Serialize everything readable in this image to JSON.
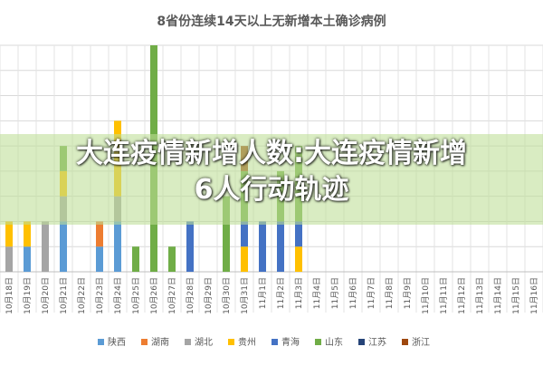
{
  "overlay": {
    "headline_line1": "大连疫情新增人数:大连疫情新增",
    "headline_line2": "6人行动轨迹"
  },
  "chart_data": {
    "type": "bar",
    "stacked": true,
    "title": "8省份连续14天以上无新增本土确诊病例",
    "categories": [
      "10月18日",
      "10月19日",
      "10月20日",
      "10月21日",
      "10月22日",
      "10月23日",
      "10月24日",
      "10月25日",
      "10月26日",
      "10月27日",
      "10月28日",
      "10月29日",
      "10月30日",
      "10月31日",
      "11月1日",
      "11月2日",
      "11月3日",
      "11月4日",
      "11月5日",
      "11月6日",
      "11月7日",
      "11月8日",
      "11月9日",
      "11月10日",
      "11月11日",
      "11月12日",
      "11月13日",
      "11月14日",
      "11月15日",
      "11月16日"
    ],
    "ylim": [
      0,
      9
    ],
    "grid": true,
    "legend_position": "bottom",
    "series": [
      {
        "name": "陕西",
        "color": "#5B9BD5",
        "values": [
          0,
          1,
          0,
          2,
          0,
          1,
          2,
          0,
          0,
          0,
          0,
          0,
          0,
          0,
          0,
          0,
          0,
          0,
          0,
          0,
          0,
          0,
          0,
          0,
          0,
          0,
          0,
          0,
          0,
          0
        ]
      },
      {
        "name": "湖南",
        "color": "#ED7D31",
        "values": [
          0,
          0,
          0,
          0,
          0,
          1,
          0,
          0,
          0,
          0,
          0,
          0,
          0,
          0,
          0,
          0,
          0,
          0,
          0,
          0,
          0,
          0,
          0,
          0,
          0,
          0,
          0,
          0,
          0,
          0
        ]
      },
      {
        "name": "湖北",
        "color": "#A5A5A5",
        "values": [
          1,
          0,
          2,
          1,
          0,
          0,
          1,
          0,
          0,
          0,
          0,
          0,
          0,
          0,
          0,
          0,
          0,
          0,
          0,
          0,
          0,
          0,
          0,
          0,
          0,
          0,
          0,
          0,
          0,
          0
        ]
      },
      {
        "name": "贵州",
        "color": "#FFC000",
        "values": [
          1,
          1,
          0,
          1,
          0,
          0,
          3,
          0,
          0,
          0,
          0,
          0,
          0,
          1,
          0,
          0,
          1,
          0,
          0,
          0,
          0,
          0,
          0,
          0,
          0,
          0,
          0,
          0,
          0,
          0
        ]
      },
      {
        "name": "青海",
        "color": "#4472C4",
        "values": [
          0,
          0,
          0,
          0,
          0,
          0,
          0,
          0,
          0,
          0,
          2,
          0,
          0,
          1,
          2,
          2,
          1,
          0,
          0,
          0,
          0,
          0,
          0,
          0,
          0,
          0,
          0,
          0,
          0,
          0
        ]
      },
      {
        "name": "山东",
        "color": "#70AD47",
        "values": [
          0,
          0,
          0,
          1,
          0,
          0,
          0,
          1,
          9,
          1,
          0,
          0,
          3,
          2,
          0,
          2,
          3,
          0,
          0,
          0,
          0,
          0,
          0,
          0,
          0,
          0,
          0,
          0,
          0,
          0
        ]
      },
      {
        "name": "江苏",
        "color": "#264478",
        "values": [
          0,
          0,
          0,
          0,
          0,
          0,
          0,
          0,
          0,
          0,
          0,
          0,
          0,
          0,
          0,
          0,
          0,
          0,
          0,
          0,
          0,
          0,
          0,
          0,
          0,
          0,
          0,
          0,
          0,
          0
        ]
      },
      {
        "name": "浙江",
        "color": "#9E480E",
        "values": [
          0,
          0,
          0,
          0,
          0,
          0,
          0,
          0,
          0,
          0,
          0,
          0,
          0,
          1,
          0,
          0,
          0,
          0,
          0,
          0,
          0,
          0,
          0,
          0,
          0,
          0,
          0,
          0,
          0,
          0
        ]
      }
    ]
  }
}
